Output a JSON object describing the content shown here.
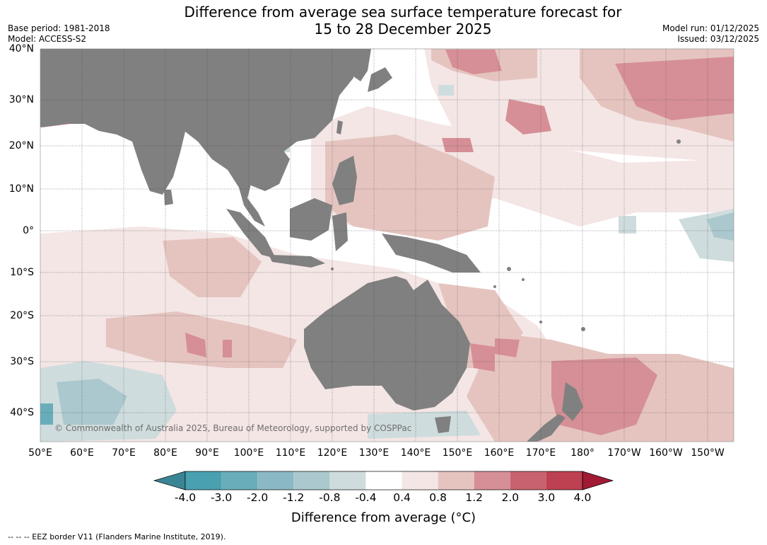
{
  "title_line1": "Difference from average sea surface temperature forecast for",
  "title_line2": "15 to 28 December 2025",
  "base_period": "Base period: 1981-2018",
  "model": "Model: ACCESS-S2",
  "model_run": "Model run: 01/12/2025",
  "issued": "Issued: 03/12/2025",
  "copyright": "© Commonwealth of Australia 2025, Bureau of Meteorology, supported by COSPPac",
  "footnote": "--  --  -- EEZ border V11 (Flanders Marine Institute, 2019).",
  "lat_labels": [
    "40°N",
    "30°N",
    "20°N",
    "10°N",
    "0°",
    "10°S",
    "20°S",
    "30°S",
    "40°S"
  ],
  "lon_labels": [
    "50°E",
    "60°E",
    "70°E",
    "80°E",
    "90°E",
    "100°E",
    "110°E",
    "120°E",
    "130°E",
    "140°E",
    "150°E",
    "160°E",
    "170°E",
    "180°",
    "170°W",
    "160°W",
    "150°W"
  ],
  "colorbar": {
    "label": "Difference from average (°C)",
    "ticks": [
      "-4.0",
      "-3.0",
      "-2.0",
      "-1.2",
      "-0.8",
      "-0.4",
      "0.4",
      "0.8",
      "1.2",
      "2.0",
      "3.0",
      "4.0"
    ],
    "colors": [
      "#3a8593",
      "#49a1b0",
      "#6aadba",
      "#8ab8c3",
      "#aac8cd",
      "#cfdcdd",
      "#ffffff",
      "#f4e6e5",
      "#e5c4c0",
      "#d68f96",
      "#c8626e",
      "#bd4150",
      "#a11a33"
    ]
  },
  "colors": {
    "land": "#808080",
    "grid": "#444444"
  }
}
